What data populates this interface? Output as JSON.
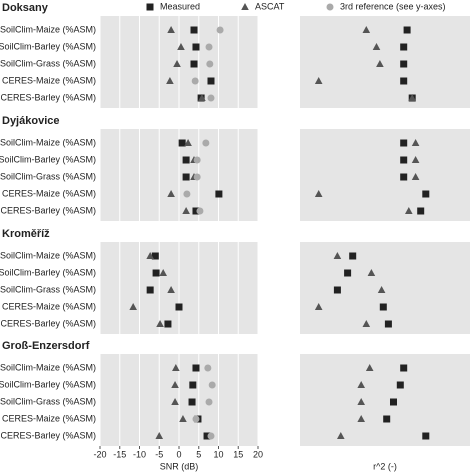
{
  "legend": [
    {
      "name": "Measured",
      "color": "#222222",
      "marker": "square"
    },
    {
      "name": "ASCAT",
      "color": "#555555",
      "marker": "triangle"
    },
    {
      "name": "3rd reference (see y-axes)",
      "color": "#aaaaaa",
      "marker": "circle"
    }
  ],
  "snr_axis": {
    "label": "SNR (dB)",
    "xlim": [
      -20,
      20
    ],
    "xticks": [
      -20,
      -15,
      -10,
      -5,
      0,
      5,
      10,
      15,
      20
    ],
    "grid": true
  },
  "r2_axis": {
    "label": "r^2 (-)",
    "xlim": [
      0,
      1
    ]
  },
  "chart_data": [
    {
      "type": "dot",
      "title": "Doksany",
      "categories": [
        "SoilClim-Maize (%ASM)",
        "SoilClim-Barley (%ASM)",
        "SoilClim-Grass (%ASM)",
        "CERES-Maize (%ASM)",
        "CERES-Barley (%ASM)"
      ],
      "series": [
        {
          "values": [
            3.8,
            4.3,
            3.8,
            8.1,
            5.6
          ]
        },
        {
          "values": [
            -2,
            0.5,
            -0.5,
            -2.3,
            5.8
          ]
        },
        {
          "values": [
            10.4,
            7.6,
            7.8,
            4.1,
            8.1
          ]
        }
      ],
      "r2_series": [
        {
          "values": [
            0.63,
            0.61,
            0.61,
            0.61,
            0.66
          ]
        },
        {
          "values": [
            0.39,
            0.45,
            0.47,
            0.11,
            0.66
          ]
        }
      ]
    },
    {
      "type": "dot",
      "title": "Dyjákovice",
      "categories": [
        "SoilClim-Maize (%ASM)",
        "SoilClim-Barley (%ASM)",
        "SoilClim-Grass (%ASM)",
        "CERES-Maize (%ASM)",
        "CERES-Barley (%ASM)"
      ],
      "series": [
        {
          "values": [
            0.8,
            1.8,
            1.8,
            10.1,
            4.3
          ]
        },
        {
          "values": [
            2.3,
            3.8,
            3.8,
            -2,
            1.8
          ]
        },
        {
          "values": [
            6.8,
            4.6,
            4.6,
            2,
            5.3
          ]
        }
      ],
      "r2_series": [
        {
          "values": [
            0.61,
            0.61,
            0.61,
            0.74,
            0.71
          ]
        },
        {
          "values": [
            0.68,
            0.68,
            0.68,
            0.11,
            0.64
          ]
        }
      ]
    },
    {
      "type": "dot",
      "title": "Kroměříž",
      "categories": [
        "SoilClim-Maize (%ASM)",
        "SoilClim-Barley (%ASM)",
        "SoilClim-Grass (%ASM)",
        "CERES-Maize (%ASM)",
        "CERES-Barley (%ASM)"
      ],
      "series": [
        {
          "values": [
            -6,
            -5.8,
            -7.3,
            0,
            -2.8
          ]
        },
        {
          "values": [
            -7.3,
            -4,
            -2,
            -11.6,
            -4.8
          ]
        },
        {
          "values": [
            null,
            null,
            null,
            null,
            null
          ]
        }
      ],
      "r2_series": [
        {
          "values": [
            0.31,
            0.28,
            0.22,
            0.49,
            0.52
          ]
        },
        {
          "values": [
            0.22,
            0.42,
            0.48,
            0.11,
            0.39
          ]
        }
      ]
    },
    {
      "type": "dot",
      "title": "Groß-Enzersdorf",
      "categories": [
        "SoilClim-Maize (%ASM)",
        "SoilClim-Barley (%ASM)",
        "SoilClim-Grass (%ASM)",
        "CERES-Maize (%ASM)",
        "CERES-Barley (%ASM)"
      ],
      "series": [
        {
          "values": [
            4.3,
            3.5,
            3.3,
            4.8,
            7.1
          ]
        },
        {
          "values": [
            -0.8,
            -1,
            -1,
            1,
            -5
          ]
        },
        {
          "values": [
            7.3,
            8.4,
            7.6,
            4.3,
            8.1
          ]
        }
      ],
      "r2_series": [
        {
          "values": [
            0.61,
            0.59,
            0.55,
            0.51,
            0.74
          ]
        },
        {
          "values": [
            0.41,
            0.36,
            0.36,
            0.36,
            0.24
          ]
        }
      ]
    }
  ]
}
